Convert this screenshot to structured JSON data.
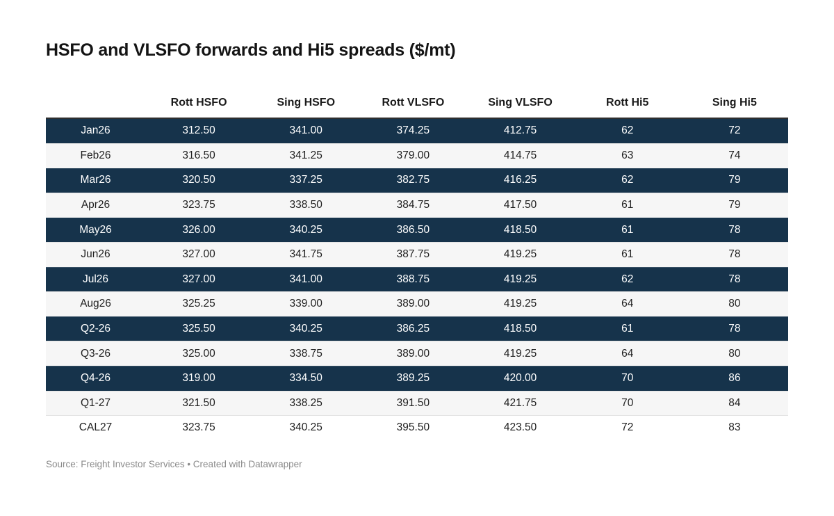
{
  "title": "HSFO and VLSFO forwards and Hi5 spreads ($/mt)",
  "footer": "Source: Freight Investor Services • Created with Datawrapper",
  "colors": {
    "highlight_row_bg": "#16334B",
    "highlight_row_text": "#FFFFFF",
    "alt_row_bg": "#F6F6F6",
    "header_border": "#2E2E2E",
    "body_text": "#1F1F1F",
    "footer_text": "#8A8A8A",
    "page_bg": "#FFFFFF"
  },
  "chart_data": {
    "type": "table",
    "title": "HSFO and VLSFO forwards and Hi5 spreads ($/mt)",
    "columns": [
      "",
      "Rott HSFO",
      "Sing HSFO",
      "Rott VLSFO",
      "Sing VLSFO",
      "Rott Hi5",
      "Sing Hi5"
    ],
    "rows": [
      {
        "period": "Jan26",
        "values": [
          "312.50",
          "341.00",
          "374.25",
          "412.75",
          "62",
          "72"
        ],
        "highlighted": true
      },
      {
        "period": "Feb26",
        "values": [
          "316.50",
          "341.25",
          "379.00",
          "414.75",
          "63",
          "74"
        ],
        "highlighted": false
      },
      {
        "period": "Mar26",
        "values": [
          "320.50",
          "337.25",
          "382.75",
          "416.25",
          "62",
          "79"
        ],
        "highlighted": true
      },
      {
        "period": "Apr26",
        "values": [
          "323.75",
          "338.50",
          "384.75",
          "417.50",
          "61",
          "79"
        ],
        "highlighted": false
      },
      {
        "period": "May26",
        "values": [
          "326.00",
          "340.25",
          "386.50",
          "418.50",
          "61",
          "78"
        ],
        "highlighted": true
      },
      {
        "period": "Jun26",
        "values": [
          "327.00",
          "341.75",
          "387.75",
          "419.25",
          "61",
          "78"
        ],
        "highlighted": false
      },
      {
        "period": "Jul26",
        "values": [
          "327.00",
          "341.00",
          "388.75",
          "419.25",
          "62",
          "78"
        ],
        "highlighted": true
      },
      {
        "period": "Aug26",
        "values": [
          "325.25",
          "339.00",
          "389.00",
          "419.25",
          "64",
          "80"
        ],
        "highlighted": false
      },
      {
        "period": "Q2-26",
        "values": [
          "325.50",
          "340.25",
          "386.25",
          "418.50",
          "61",
          "78"
        ],
        "highlighted": true
      },
      {
        "period": "Q3-26",
        "values": [
          "325.00",
          "338.75",
          "389.00",
          "419.25",
          "64",
          "80"
        ],
        "highlighted": false
      },
      {
        "period": "Q4-26",
        "values": [
          "319.00",
          "334.50",
          "389.25",
          "420.00",
          "70",
          "86"
        ],
        "highlighted": true
      },
      {
        "period": "Q1-27",
        "values": [
          "321.50",
          "338.25",
          "391.50",
          "421.75",
          "70",
          "84"
        ],
        "highlighted": false
      },
      {
        "period": "CAL27",
        "values": [
          "323.75",
          "340.25",
          "395.50",
          "423.50",
          "72",
          "83"
        ],
        "highlighted": false
      }
    ]
  }
}
